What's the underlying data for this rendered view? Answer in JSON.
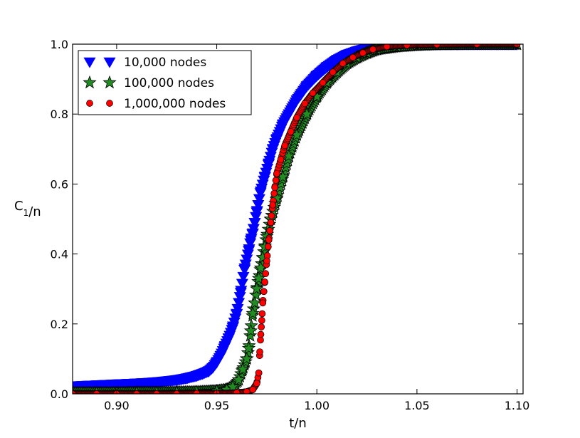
{
  "chart_data": {
    "type": "scatter",
    "xlabel": "t/n",
    "ylabel_main": "C",
    "ylabel_sub": "1",
    "ylabel_tail": "/n",
    "xlim": [
      0.878,
      1.103
    ],
    "ylim": [
      0.0,
      1.0
    ],
    "xticks": [
      0.9,
      0.95,
      1.0,
      1.05,
      1.1
    ],
    "xtick_labels": [
      "0.90",
      "0.95",
      "1.00",
      "1.05",
      "1.10"
    ],
    "yticks": [
      0.0,
      0.2,
      0.4,
      0.6,
      0.8,
      1.0
    ],
    "ytick_labels": [
      "0.0",
      "0.2",
      "0.4",
      "0.6",
      "0.8",
      "1.0"
    ],
    "grid": false,
    "legend_position": "top-left",
    "series": [
      {
        "name": "10,000 nodes",
        "marker": "triangle-down",
        "color": "#0000ff",
        "edge": "#0000ff",
        "x": [
          0.878,
          0.885,
          0.893,
          0.9,
          0.908,
          0.915,
          0.922,
          0.93,
          0.935,
          0.94,
          0.943,
          0.946,
          0.948,
          0.95,
          0.952,
          0.954,
          0.956,
          0.958,
          0.96,
          0.962,
          0.964,
          0.966,
          0.967,
          0.968,
          0.969,
          0.97,
          0.972,
          0.974,
          0.976,
          0.978,
          0.98,
          0.983,
          0.986,
          0.99,
          0.995,
          1.0,
          1.005,
          1.01,
          1.015,
          1.02,
          1.025,
          1.03,
          1.04,
          1.05,
          1.06,
          1.07,
          1.08,
          1.09,
          1.1
        ],
        "y": [
          0.022,
          0.024,
          0.026,
          0.028,
          0.03,
          0.032,
          0.035,
          0.04,
          0.045,
          0.052,
          0.058,
          0.065,
          0.075,
          0.09,
          0.11,
          0.135,
          0.16,
          0.19,
          0.23,
          0.29,
          0.36,
          0.41,
          0.44,
          0.46,
          0.49,
          0.52,
          0.58,
          0.62,
          0.66,
          0.7,
          0.73,
          0.77,
          0.8,
          0.84,
          0.88,
          0.91,
          0.935,
          0.955,
          0.97,
          0.98,
          0.988,
          0.993,
          0.997,
          0.999,
          1.0,
          1.0,
          1.0,
          1.0,
          1.0
        ]
      },
      {
        "name": "100,000 nodes",
        "marker": "star",
        "color": "#228b22",
        "edge": "#000000",
        "x": [
          0.878,
          0.89,
          0.9,
          0.91,
          0.92,
          0.93,
          0.94,
          0.95,
          0.955,
          0.958,
          0.961,
          0.963,
          0.965,
          0.966,
          0.967,
          0.968,
          0.969,
          0.97,
          0.971,
          0.972,
          0.973,
          0.974,
          0.975,
          0.977,
          0.98,
          0.983,
          0.986,
          0.99,
          0.995,
          1.0,
          1.005,
          1.01,
          1.015,
          1.02,
          1.025,
          1.03,
          1.04,
          1.05,
          1.06,
          1.08,
          1.1
        ],
        "y": [
          0.002,
          0.002,
          0.002,
          0.003,
          0.003,
          0.004,
          0.005,
          0.008,
          0.012,
          0.02,
          0.04,
          0.07,
          0.1,
          0.13,
          0.18,
          0.23,
          0.26,
          0.3,
          0.33,
          0.36,
          0.39,
          0.42,
          0.45,
          0.5,
          0.56,
          0.62,
          0.68,
          0.74,
          0.8,
          0.85,
          0.89,
          0.92,
          0.945,
          0.962,
          0.975,
          0.985,
          0.993,
          0.997,
          0.999,
          1.0,
          1.0
        ]
      },
      {
        "name": "1,000,000 nodes",
        "marker": "circle",
        "color": "#ff0000",
        "edge": "#000000",
        "x": [
          0.878,
          0.89,
          0.9,
          0.91,
          0.92,
          0.93,
          0.94,
          0.95,
          0.96,
          0.965,
          0.968,
          0.97,
          0.971,
          0.9715,
          0.972,
          0.9725,
          0.973,
          0.974,
          0.975,
          0.976,
          0.977,
          0.978,
          0.979,
          0.98,
          0.982,
          0.984,
          0.987,
          0.99,
          0.994,
          0.998,
          1.003,
          1.008,
          1.013,
          1.018,
          1.023,
          1.028,
          1.035,
          1.045,
          1.06,
          1.08,
          1.1
        ],
        "y": [
          0.0,
          0.0,
          0.0,
          0.0,
          0.0,
          0.0,
          0.001,
          0.001,
          0.003,
          0.006,
          0.012,
          0.03,
          0.06,
          0.12,
          0.17,
          0.21,
          0.26,
          0.32,
          0.38,
          0.44,
          0.49,
          0.54,
          0.59,
          0.63,
          0.67,
          0.71,
          0.75,
          0.79,
          0.83,
          0.86,
          0.89,
          0.92,
          0.945,
          0.962,
          0.975,
          0.985,
          0.993,
          0.997,
          0.999,
          1.0,
          1.0
        ]
      }
    ]
  }
}
